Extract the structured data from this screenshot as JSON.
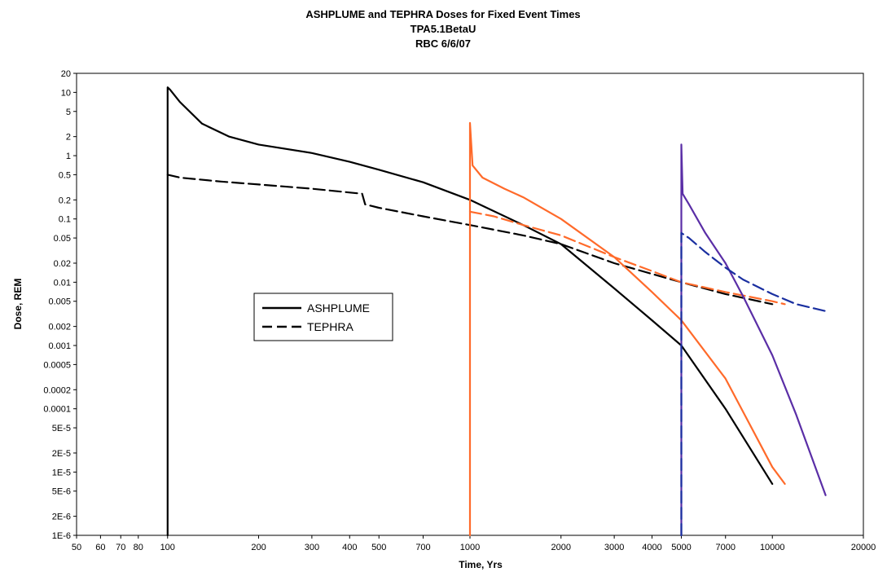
{
  "chart_data": {
    "type": "line",
    "title": [
      "ASHPLUME and TEPHRA Doses for Fixed Event Times",
      "TPA5.1BetaU",
      "RBC 6/6/07"
    ],
    "xlabel": "Time, Yrs",
    "ylabel": "Dose, REM",
    "xscale": "log",
    "yscale": "log",
    "xlim": [
      50,
      20000
    ],
    "ylim": [
      1e-06,
      20
    ],
    "grid": false,
    "legend_position": "middle-left",
    "x_ticks": [
      {
        "value": 50,
        "label": "50"
      },
      {
        "value": 60,
        "label": "60"
      },
      {
        "value": 70,
        "label": "70"
      },
      {
        "value": 80,
        "label": "80"
      },
      {
        "value": 100,
        "label": "100"
      },
      {
        "value": 200,
        "label": "200"
      },
      {
        "value": 300,
        "label": "300"
      },
      {
        "value": 400,
        "label": "400"
      },
      {
        "value": 500,
        "label": "500"
      },
      {
        "value": 700,
        "label": "700"
      },
      {
        "value": 1000,
        "label": "1000"
      },
      {
        "value": 2000,
        "label": "2000"
      },
      {
        "value": 3000,
        "label": "3000"
      },
      {
        "value": 4000,
        "label": "4000"
      },
      {
        "value": 5000,
        "label": "5000"
      },
      {
        "value": 7000,
        "label": "7000"
      },
      {
        "value": 10000,
        "label": "10000"
      },
      {
        "value": 20000,
        "label": "20000"
      }
    ],
    "y_ticks": [
      {
        "value": 20,
        "label": "20"
      },
      {
        "value": 10,
        "label": "10"
      },
      {
        "value": 5,
        "label": "5"
      },
      {
        "value": 2,
        "label": "2"
      },
      {
        "value": 1,
        "label": "1"
      },
      {
        "value": 0.5,
        "label": "0.5"
      },
      {
        "value": 0.2,
        "label": "0.2"
      },
      {
        "value": 0.1,
        "label": "0.1"
      },
      {
        "value": 0.05,
        "label": "0.05"
      },
      {
        "value": 0.02,
        "label": "0.02"
      },
      {
        "value": 0.01,
        "label": "0.01"
      },
      {
        "value": 0.005,
        "label": "0.005"
      },
      {
        "value": 0.002,
        "label": "0.002"
      },
      {
        "value": 0.001,
        "label": "0.001"
      },
      {
        "value": 0.0005,
        "label": "0.0005"
      },
      {
        "value": 0.0002,
        "label": "0.0002"
      },
      {
        "value": 0.0001,
        "label": "0.0001"
      },
      {
        "value": 5e-05,
        "label": "5E-5"
      },
      {
        "value": 2e-05,
        "label": "2E-5"
      },
      {
        "value": 1e-05,
        "label": "1E-5"
      },
      {
        "value": 5e-06,
        "label": "5E-6"
      },
      {
        "value": 2e-06,
        "label": "2E-6"
      },
      {
        "value": 1e-06,
        "label": "1E-6"
      }
    ],
    "legend": [
      {
        "label": "ASHPLUME",
        "dash": "solid"
      },
      {
        "label": "TEPHRA",
        "dash": "dashed"
      }
    ],
    "series": [
      {
        "group": "event-100",
        "kind": "ASHPLUME",
        "color": "#000000",
        "dash": "solid",
        "x": [
          100,
          100,
          102,
          110,
          130,
          160,
          200,
          300,
          400,
          500,
          700,
          1000,
          1500,
          2000,
          3000,
          4000,
          5000,
          7000,
          10000
        ],
        "y": [
          1e-06,
          12,
          11,
          7,
          3.2,
          2,
          1.5,
          1.1,
          0.8,
          0.6,
          0.38,
          0.2,
          0.08,
          0.04,
          0.008,
          0.0025,
          0.001,
          0.0001,
          6.5e-06
        ]
      },
      {
        "group": "event-100",
        "kind": "TEPHRA",
        "color": "#000000",
        "dash": "dashed",
        "x": [
          100,
          110,
          150,
          200,
          300,
          440,
          450,
          500,
          700,
          1000,
          1500,
          2000,
          3000,
          5000,
          7000,
          10000
        ],
        "y": [
          0.5,
          0.45,
          0.39,
          0.35,
          0.3,
          0.25,
          0.17,
          0.15,
          0.11,
          0.08,
          0.055,
          0.04,
          0.02,
          0.01,
          0.0065,
          0.0045
        ]
      },
      {
        "group": "event-1000",
        "kind": "ASHPLUME",
        "color": "#ff6a2a",
        "dash": "solid",
        "x": [
          1000,
          1000,
          1020,
          1100,
          1300,
          1500,
          2000,
          3000,
          4000,
          5000,
          7000,
          10000,
          11000
        ],
        "y": [
          1e-06,
          3.3,
          0.7,
          0.45,
          0.3,
          0.22,
          0.1,
          0.025,
          0.007,
          0.0025,
          0.0003,
          1.2e-05,
          6.5e-06
        ]
      },
      {
        "group": "event-1000",
        "kind": "TEPHRA",
        "color": "#ff6a2a",
        "dash": "dashed",
        "x": [
          1000,
          1200,
          1500,
          2000,
          3000,
          4000,
          5000,
          7000,
          10000,
          11000
        ],
        "y": [
          0.13,
          0.11,
          0.08,
          0.055,
          0.025,
          0.015,
          0.01,
          0.007,
          0.005,
          0.0045
        ]
      },
      {
        "group": "event-5000",
        "kind": "ASHPLUME",
        "color": "#5a2ea6",
        "dash": "solid",
        "x": [
          5000,
          5000,
          5050,
          5300,
          6000,
          7000,
          8000,
          10000,
          12000,
          15000
        ],
        "y": [
          1e-06,
          1.5,
          0.25,
          0.17,
          0.06,
          0.02,
          0.006,
          0.0007,
          8e-05,
          4.3e-06
        ]
      },
      {
        "group": "event-5000",
        "kind": "TEPHRA",
        "color": "#1a2fa0",
        "dash": "dashed",
        "x": [
          5000,
          5000,
          5300,
          6000,
          7000,
          8000,
          10000,
          12000,
          15000
        ],
        "y": [
          1e-06,
          0.06,
          0.05,
          0.03,
          0.017,
          0.011,
          0.0065,
          0.0045,
          0.0035
        ]
      }
    ]
  }
}
